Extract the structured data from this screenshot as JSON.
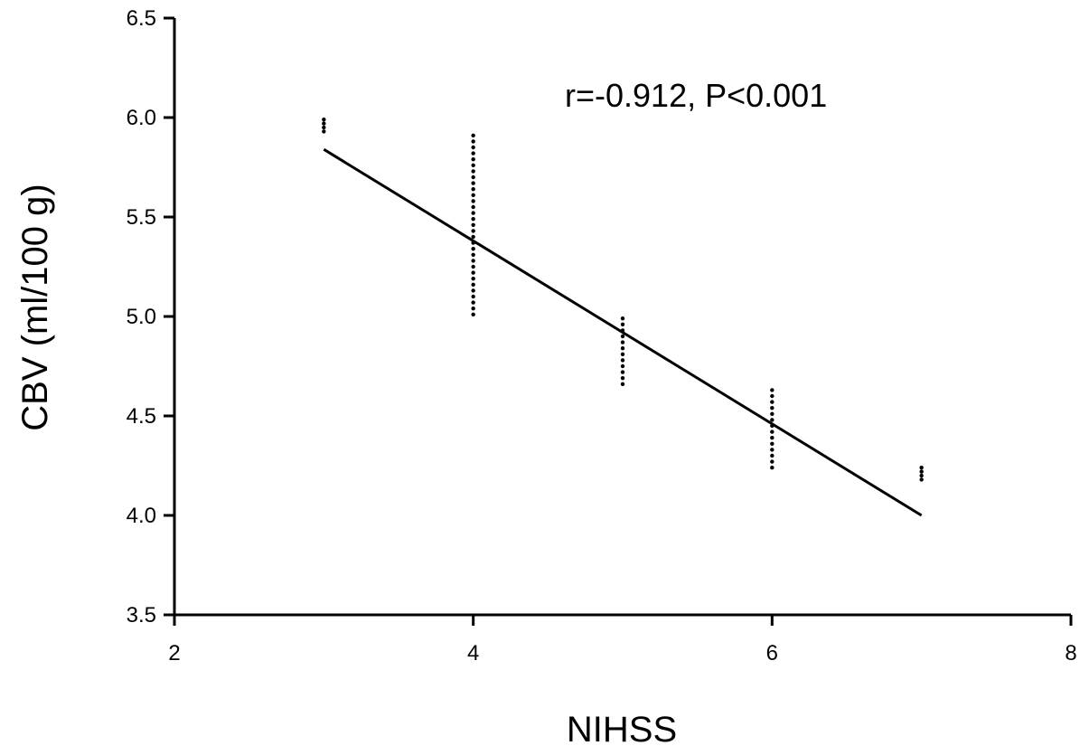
{
  "chart_data": {
    "type": "scatter",
    "title": "",
    "xlabel": "NIHSS",
    "ylabel": "CBV (ml/100 g)",
    "xlim": [
      2,
      8
    ],
    "ylim": [
      3.5,
      6.5
    ],
    "xticks": [
      2,
      4,
      6,
      8
    ],
    "xtick_labels": [
      "2",
      "4",
      "6",
      "8"
    ],
    "yticks": [
      3.5,
      4.0,
      4.5,
      5.0,
      5.5,
      6.0,
      6.5
    ],
    "ytick_labels": [
      "3.5",
      "4.0",
      "4.5",
      "5.0",
      "5.5",
      "6.0",
      "6.5"
    ],
    "grid": false,
    "annotation": "r=-0.912, P<0.001",
    "regression_line": {
      "x": [
        3,
        7
      ],
      "y": [
        5.84,
        4.0
      ]
    },
    "points": [
      {
        "x": 3,
        "y": 5.93
      },
      {
        "x": 3,
        "y": 5.95
      },
      {
        "x": 3,
        "y": 5.97
      },
      {
        "x": 3,
        "y": 5.99
      },
      {
        "x": 4,
        "y": 5.01
      },
      {
        "x": 4,
        "y": 5.04
      },
      {
        "x": 4,
        "y": 5.07
      },
      {
        "x": 4,
        "y": 5.1
      },
      {
        "x": 4,
        "y": 5.13
      },
      {
        "x": 4,
        "y": 5.16
      },
      {
        "x": 4,
        "y": 5.19
      },
      {
        "x": 4,
        "y": 5.22
      },
      {
        "x": 4,
        "y": 5.25
      },
      {
        "x": 4,
        "y": 5.28
      },
      {
        "x": 4,
        "y": 5.31
      },
      {
        "x": 4,
        "y": 5.34
      },
      {
        "x": 4,
        "y": 5.37
      },
      {
        "x": 4,
        "y": 5.4
      },
      {
        "x": 4,
        "y": 5.43
      },
      {
        "x": 4,
        "y": 5.46
      },
      {
        "x": 4,
        "y": 5.49
      },
      {
        "x": 4,
        "y": 5.52
      },
      {
        "x": 4,
        "y": 5.55
      },
      {
        "x": 4,
        "y": 5.58
      },
      {
        "x": 4,
        "y": 5.61
      },
      {
        "x": 4,
        "y": 5.64
      },
      {
        "x": 4,
        "y": 5.67
      },
      {
        "x": 4,
        "y": 5.7
      },
      {
        "x": 4,
        "y": 5.73
      },
      {
        "x": 4,
        "y": 5.76
      },
      {
        "x": 4,
        "y": 5.79
      },
      {
        "x": 4,
        "y": 5.82
      },
      {
        "x": 4,
        "y": 5.85
      },
      {
        "x": 4,
        "y": 5.88
      },
      {
        "x": 4,
        "y": 5.91
      },
      {
        "x": 5,
        "y": 4.66
      },
      {
        "x": 5,
        "y": 4.69
      },
      {
        "x": 5,
        "y": 4.72
      },
      {
        "x": 5,
        "y": 4.75
      },
      {
        "x": 5,
        "y": 4.78
      },
      {
        "x": 5,
        "y": 4.81
      },
      {
        "x": 5,
        "y": 4.84
      },
      {
        "x": 5,
        "y": 4.87
      },
      {
        "x": 5,
        "y": 4.9
      },
      {
        "x": 5,
        "y": 4.93
      },
      {
        "x": 5,
        "y": 4.96
      },
      {
        "x": 5,
        "y": 4.99
      },
      {
        "x": 6,
        "y": 4.24
      },
      {
        "x": 6,
        "y": 4.27
      },
      {
        "x": 6,
        "y": 4.3
      },
      {
        "x": 6,
        "y": 4.33
      },
      {
        "x": 6,
        "y": 4.36
      },
      {
        "x": 6,
        "y": 4.39
      },
      {
        "x": 6,
        "y": 4.42
      },
      {
        "x": 6,
        "y": 4.45
      },
      {
        "x": 6,
        "y": 4.48
      },
      {
        "x": 6,
        "y": 4.51
      },
      {
        "x": 6,
        "y": 4.54
      },
      {
        "x": 6,
        "y": 4.57
      },
      {
        "x": 6,
        "y": 4.6
      },
      {
        "x": 6,
        "y": 4.63
      },
      {
        "x": 7,
        "y": 4.18
      },
      {
        "x": 7,
        "y": 4.2
      },
      {
        "x": 7,
        "y": 4.22
      },
      {
        "x": 7,
        "y": 4.24
      }
    ]
  }
}
